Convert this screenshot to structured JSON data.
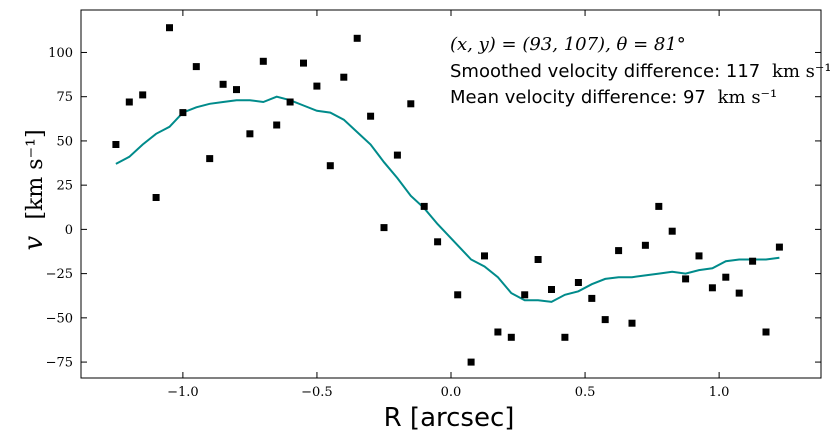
{
  "chart_data": {
    "type": "scatter",
    "xlabel": "R [arcsec]",
    "ylabel_var": "v",
    "ylabel_unit": "[km s⁻¹]",
    "xlim": [
      -1.38,
      1.38
    ],
    "ylim": [
      -84,
      124
    ],
    "xticks": [
      -1.0,
      -0.5,
      0.0,
      0.5,
      1.0
    ],
    "xtick_labels": [
      "−1.0",
      "−0.5",
      "0.0",
      "0.5",
      "1.0"
    ],
    "yticks": [
      -75,
      -50,
      -25,
      0,
      25,
      50,
      75,
      100
    ],
    "ytick_labels": [
      "−75",
      "−50",
      "−25",
      "0",
      "25",
      "50",
      "75",
      "100"
    ],
    "grid": false,
    "colors": {
      "points": "#000000",
      "line": "#008b8b"
    },
    "annotations": {
      "line1": "(x, y) = (93, 107), θ = 81°",
      "line2_text": "Smoothed velocity difference: 117",
      "line2_unit": "km s⁻¹",
      "line3_text": "Mean velocity difference: 97",
      "line3_unit": "km s⁻¹"
    },
    "series": [
      {
        "kind": "points",
        "x": [
          -1.25,
          -1.2,
          -1.15,
          -1.1,
          -1.05,
          -1.0,
          -0.95,
          -0.9,
          -0.85,
          -0.8,
          -0.75,
          -0.7,
          -0.65,
          -0.6,
          -0.55,
          -0.5,
          -0.45,
          -0.4,
          -0.35,
          -0.3,
          -0.25,
          -0.2,
          -0.15,
          -0.1,
          -0.05,
          0.025,
          0.075,
          0.125,
          0.175,
          0.225,
          0.275,
          0.325,
          0.375,
          0.425,
          0.475,
          0.525,
          0.575,
          0.625,
          0.675,
          0.725,
          0.775,
          0.825,
          0.875,
          0.925,
          0.975,
          1.025,
          1.075,
          1.125,
          1.175,
          1.225
        ],
        "y": [
          48,
          72,
          76,
          18,
          114,
          66,
          92,
          40,
          82,
          79,
          54,
          95,
          59,
          72,
          94,
          81,
          36,
          86,
          108,
          64,
          1,
          42,
          71,
          13,
          -7,
          -37,
          -75,
          -15,
          -58,
          -61,
          -37,
          -17,
          -34,
          -61,
          -30,
          -39,
          -51,
          -12,
          -53,
          -9,
          13,
          -1,
          -28,
          -15,
          -33,
          -27,
          -36,
          -18,
          -58,
          -10
        ]
      },
      {
        "kind": "line",
        "x": [
          -1.25,
          -1.2,
          -1.15,
          -1.1,
          -1.05,
          -1.0,
          -0.95,
          -0.9,
          -0.85,
          -0.8,
          -0.75,
          -0.7,
          -0.65,
          -0.6,
          -0.55,
          -0.5,
          -0.45,
          -0.4,
          -0.35,
          -0.3,
          -0.25,
          -0.2,
          -0.15,
          -0.1,
          -0.05,
          0.025,
          0.075,
          0.125,
          0.175,
          0.225,
          0.275,
          0.325,
          0.375,
          0.425,
          0.475,
          0.525,
          0.575,
          0.625,
          0.675,
          0.725,
          0.775,
          0.825,
          0.875,
          0.925,
          0.975,
          1.025,
          1.075,
          1.125,
          1.175,
          1.225
        ],
        "y": [
          37,
          41,
          48,
          54,
          58,
          66,
          69,
          71,
          72,
          73,
          73,
          72,
          75,
          73,
          70,
          67,
          66,
          62,
          55,
          48,
          38,
          29,
          19,
          12,
          3,
          -9,
          -17,
          -21,
          -27,
          -36,
          -40,
          -40,
          -41,
          -37,
          -35,
          -31,
          -28,
          -27,
          -27,
          -26,
          -25,
          -24,
          -25,
          -23,
          -22,
          -18,
          -17,
          -17,
          -17,
          -16
        ]
      }
    ]
  }
}
